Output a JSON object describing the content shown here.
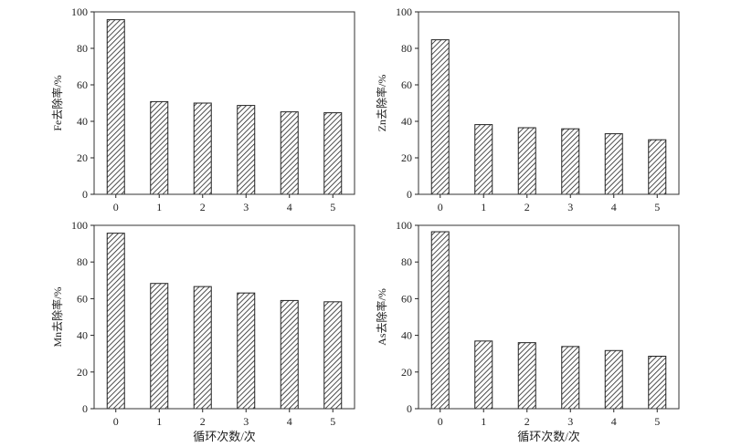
{
  "chart_data": [
    {
      "type": "bar",
      "position": "top-left",
      "ylabel": "Fe去除率/%",
      "xlabel": "",
      "categories": [
        "0",
        "1",
        "2",
        "3",
        "4",
        "5"
      ],
      "values": [
        95.7,
        50.8,
        50.0,
        48.7,
        45.2,
        44.7
      ],
      "ylim": [
        0,
        100
      ],
      "yticks": [
        "0",
        "20",
        "40",
        "60",
        "80",
        "100"
      ],
      "fill": "hatched",
      "grid": false
    },
    {
      "type": "bar",
      "position": "top-right",
      "ylabel": "Zn去除率/%",
      "xlabel": "",
      "categories": [
        "0",
        "1",
        "2",
        "3",
        "4",
        "5"
      ],
      "values": [
        84.7,
        38.2,
        36.5,
        35.9,
        33.2,
        29.9
      ],
      "ylim": [
        0,
        100
      ],
      "yticks": [
        "0",
        "20",
        "40",
        "60",
        "80",
        "100"
      ],
      "fill": "hatched",
      "grid": false
    },
    {
      "type": "bar",
      "position": "bottom-left",
      "ylabel": "Mn去除率/%",
      "xlabel": "循环次数/次",
      "categories": [
        "0",
        "1",
        "2",
        "3",
        "4",
        "5"
      ],
      "values": [
        95.7,
        68.3,
        66.6,
        63.1,
        59.0,
        58.3
      ],
      "ylim": [
        0,
        100
      ],
      "yticks": [
        "0",
        "20",
        "40",
        "60",
        "80",
        "100"
      ],
      "fill": "hatched",
      "grid": false
    },
    {
      "type": "bar",
      "position": "bottom-right",
      "ylabel": "As去除率/%",
      "xlabel": "循环次数/次",
      "categories": [
        "0",
        "1",
        "2",
        "3",
        "4",
        "5"
      ],
      "values": [
        96.5,
        36.9,
        36.0,
        33.9,
        31.7,
        28.6
      ],
      "ylim": [
        0,
        100
      ],
      "yticks": [
        "0",
        "20",
        "40",
        "60",
        "80",
        "100"
      ],
      "fill": "hatched",
      "grid": false
    }
  ]
}
